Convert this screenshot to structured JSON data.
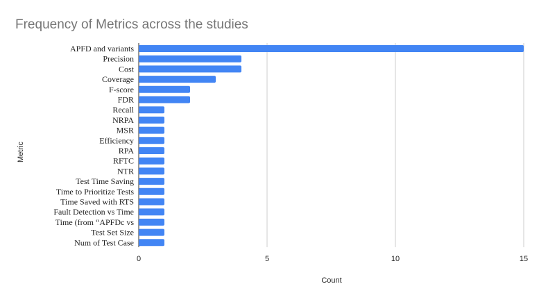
{
  "chart_data": {
    "type": "bar",
    "orientation": "horizontal",
    "title": "Frequency of Metrics across the studies",
    "xlabel": "Count",
    "ylabel": "Metric",
    "xlim": [
      0,
      15
    ],
    "xticks": [
      "0",
      "5",
      "10",
      "15"
    ],
    "grid": true,
    "legend": "none",
    "bar_color": "#4285f4",
    "categories": [
      "APFD and variants",
      "Precision",
      "Cost",
      "Coverage",
      "F-score",
      "FDR",
      "Recall",
      "NRPA",
      "MSR",
      "Efficiency",
      "RPA",
      "RFTC",
      "NTR",
      "Test Time Saving",
      "Time to Prioritize Tests",
      "Time Saved with RTS",
      "Fault Detection vs Time",
      "Time (from “APFDc vs",
      "Test Set Size",
      "Num of Test Case"
    ],
    "values": [
      15,
      4,
      4,
      3,
      2,
      2,
      1,
      1,
      1,
      1,
      1,
      1,
      1,
      1,
      1,
      1,
      1,
      1,
      1,
      1
    ]
  }
}
